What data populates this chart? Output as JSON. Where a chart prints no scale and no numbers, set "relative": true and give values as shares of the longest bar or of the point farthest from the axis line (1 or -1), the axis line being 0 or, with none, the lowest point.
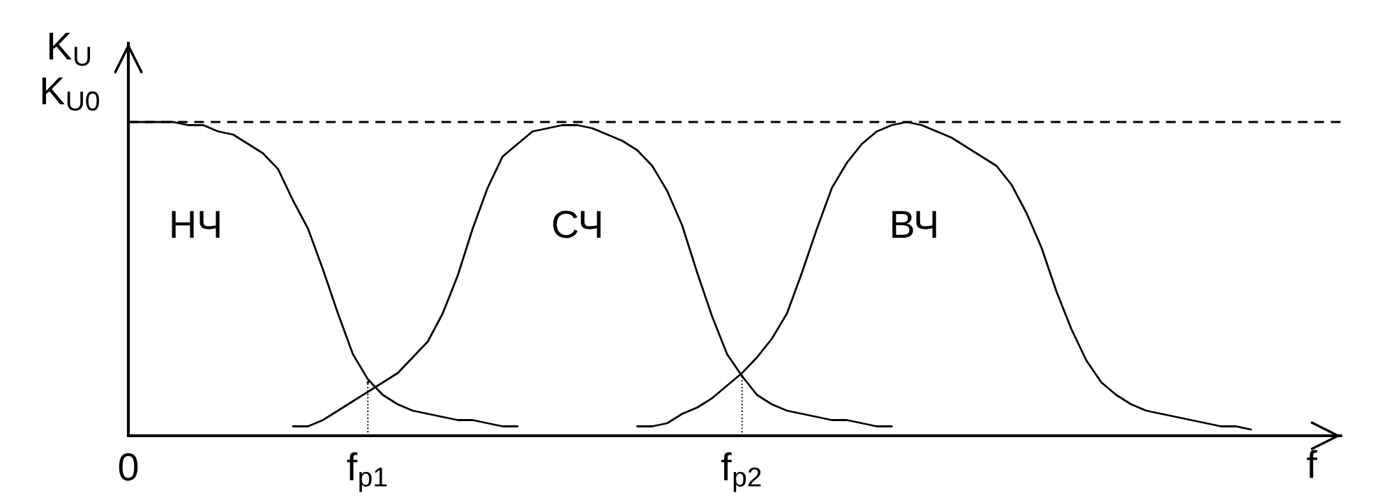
{
  "chart_data": {
    "type": "line",
    "relative": true,
    "xlabel": "f",
    "ylabel": "K$_{U}$",
    "categories": [
      "0",
      null,
      null,
      null,
      null,
      null,
      null,
      null,
      null,
      null,
      null,
      null,
      null,
      null,
      null,
      null,
      "f$_{p1}$",
      null,
      null,
      null,
      null,
      null,
      null,
      null,
      null,
      null,
      null,
      null,
      null,
      null,
      null,
      null,
      null,
      null,
      null,
      null,
      null,
      null,
      null,
      null,
      null,
      "f$_{p2}$",
      null,
      null,
      null,
      null,
      null,
      null,
      null,
      null,
      null,
      null,
      null,
      null,
      null,
      null,
      null,
      null,
      null,
      null,
      null,
      null,
      null,
      null,
      null,
      null,
      null,
      null,
      null,
      null,
      null,
      null,
      null,
      null,
      null,
      null,
      null,
      null,
      null,
      null,
      null,
      null
    ],
    "ref_lines": [
      {
        "axis": "y",
        "value": 1,
        "label": "K$_{U0}$",
        "color": "#000000",
        "line_style": "dashed"
      }
    ],
    "series": [
      {
        "name": "НЧ",
        "color": "#000000",
        "values": [
          1.0,
          1.0,
          1.0,
          1.0,
          0.99,
          0.99,
          0.97,
          0.96,
          0.93,
          0.9,
          0.85,
          0.75,
          0.66,
          0.53,
          0.39,
          0.26,
          0.18,
          0.13,
          0.1,
          0.08,
          0.07,
          0.06,
          0.05,
          0.05,
          0.04,
          0.03,
          0.03,
          null,
          null,
          null,
          null,
          null,
          null,
          null,
          null,
          null,
          null,
          null,
          null,
          null,
          null,
          null,
          null,
          null,
          null,
          null,
          null,
          null,
          null,
          null,
          null,
          null,
          null,
          null,
          null,
          null,
          null,
          null,
          null,
          null,
          null,
          null,
          null,
          null,
          null,
          null,
          null,
          null,
          null,
          null,
          null,
          null,
          null,
          null,
          null,
          null,
          null,
          null,
          null,
          null,
          null,
          null
        ]
      },
      {
        "name": "СЧ",
        "color": "#000000",
        "values": [
          null,
          null,
          null,
          null,
          null,
          null,
          null,
          null,
          null,
          null,
          null,
          0.03,
          0.03,
          0.05,
          0.08,
          0.11,
          0.14,
          0.17,
          0.2,
          0.25,
          0.3,
          0.39,
          0.51,
          0.66,
          0.79,
          0.89,
          0.93,
          0.97,
          0.98,
          0.99,
          0.99,
          0.98,
          0.96,
          0.94,
          0.91,
          0.86,
          0.78,
          0.67,
          0.52,
          0.38,
          0.26,
          0.19,
          0.13,
          0.1,
          0.08,
          0.07,
          0.06,
          0.05,
          0.05,
          0.04,
          0.03,
          0.03,
          null,
          null,
          null,
          null,
          null,
          null,
          null,
          null,
          null,
          null,
          null,
          null,
          null,
          null,
          null,
          null,
          null,
          null,
          null,
          null,
          null,
          null,
          null,
          null,
          null,
          null,
          null,
          null,
          null,
          null
        ]
      },
      {
        "name": "ВЧ",
        "color": "#000000",
        "values": [
          null,
          null,
          null,
          null,
          null,
          null,
          null,
          null,
          null,
          null,
          null,
          null,
          null,
          null,
          null,
          null,
          null,
          null,
          null,
          null,
          null,
          null,
          null,
          null,
          null,
          null,
          null,
          null,
          null,
          null,
          null,
          null,
          null,
          null,
          0.03,
          0.03,
          0.04,
          0.07,
          0.09,
          0.12,
          0.16,
          0.2,
          0.25,
          0.31,
          0.39,
          0.52,
          0.66,
          0.79,
          0.87,
          0.93,
          0.97,
          0.99,
          1.0,
          0.99,
          0.97,
          0.95,
          0.92,
          0.89,
          0.86,
          0.8,
          0.71,
          0.6,
          0.46,
          0.34,
          0.24,
          0.17,
          0.13,
          0.1,
          0.08,
          0.07,
          0.06,
          0.05,
          0.04,
          0.03,
          0.03,
          0.02,
          null,
          null,
          null,
          null,
          null,
          null
        ]
      },
      {
        "type": "lollipop",
        "marker": "circle",
        "line_style": "dotted",
        "color": "#000000",
        "values": [
          null,
          null,
          null,
          null,
          null,
          null,
          null,
          null,
          null,
          null,
          null,
          null,
          null,
          null,
          null,
          null,
          0.17,
          null,
          null,
          null,
          null,
          null,
          null,
          null,
          null,
          null,
          null,
          null,
          null,
          null,
          null,
          null,
          null,
          null,
          null,
          null,
          null,
          null,
          null,
          null,
          null,
          0.19,
          null,
          null,
          null,
          null,
          null,
          null,
          null,
          null,
          null,
          null,
          null,
          null,
          null,
          null,
          null,
          null,
          null,
          null,
          null,
          null,
          null,
          null,
          null,
          null,
          null,
          null,
          null,
          null,
          null,
          null,
          null,
          null,
          null,
          null,
          null,
          null,
          null,
          null,
          null,
          null
        ]
      }
    ]
  }
}
